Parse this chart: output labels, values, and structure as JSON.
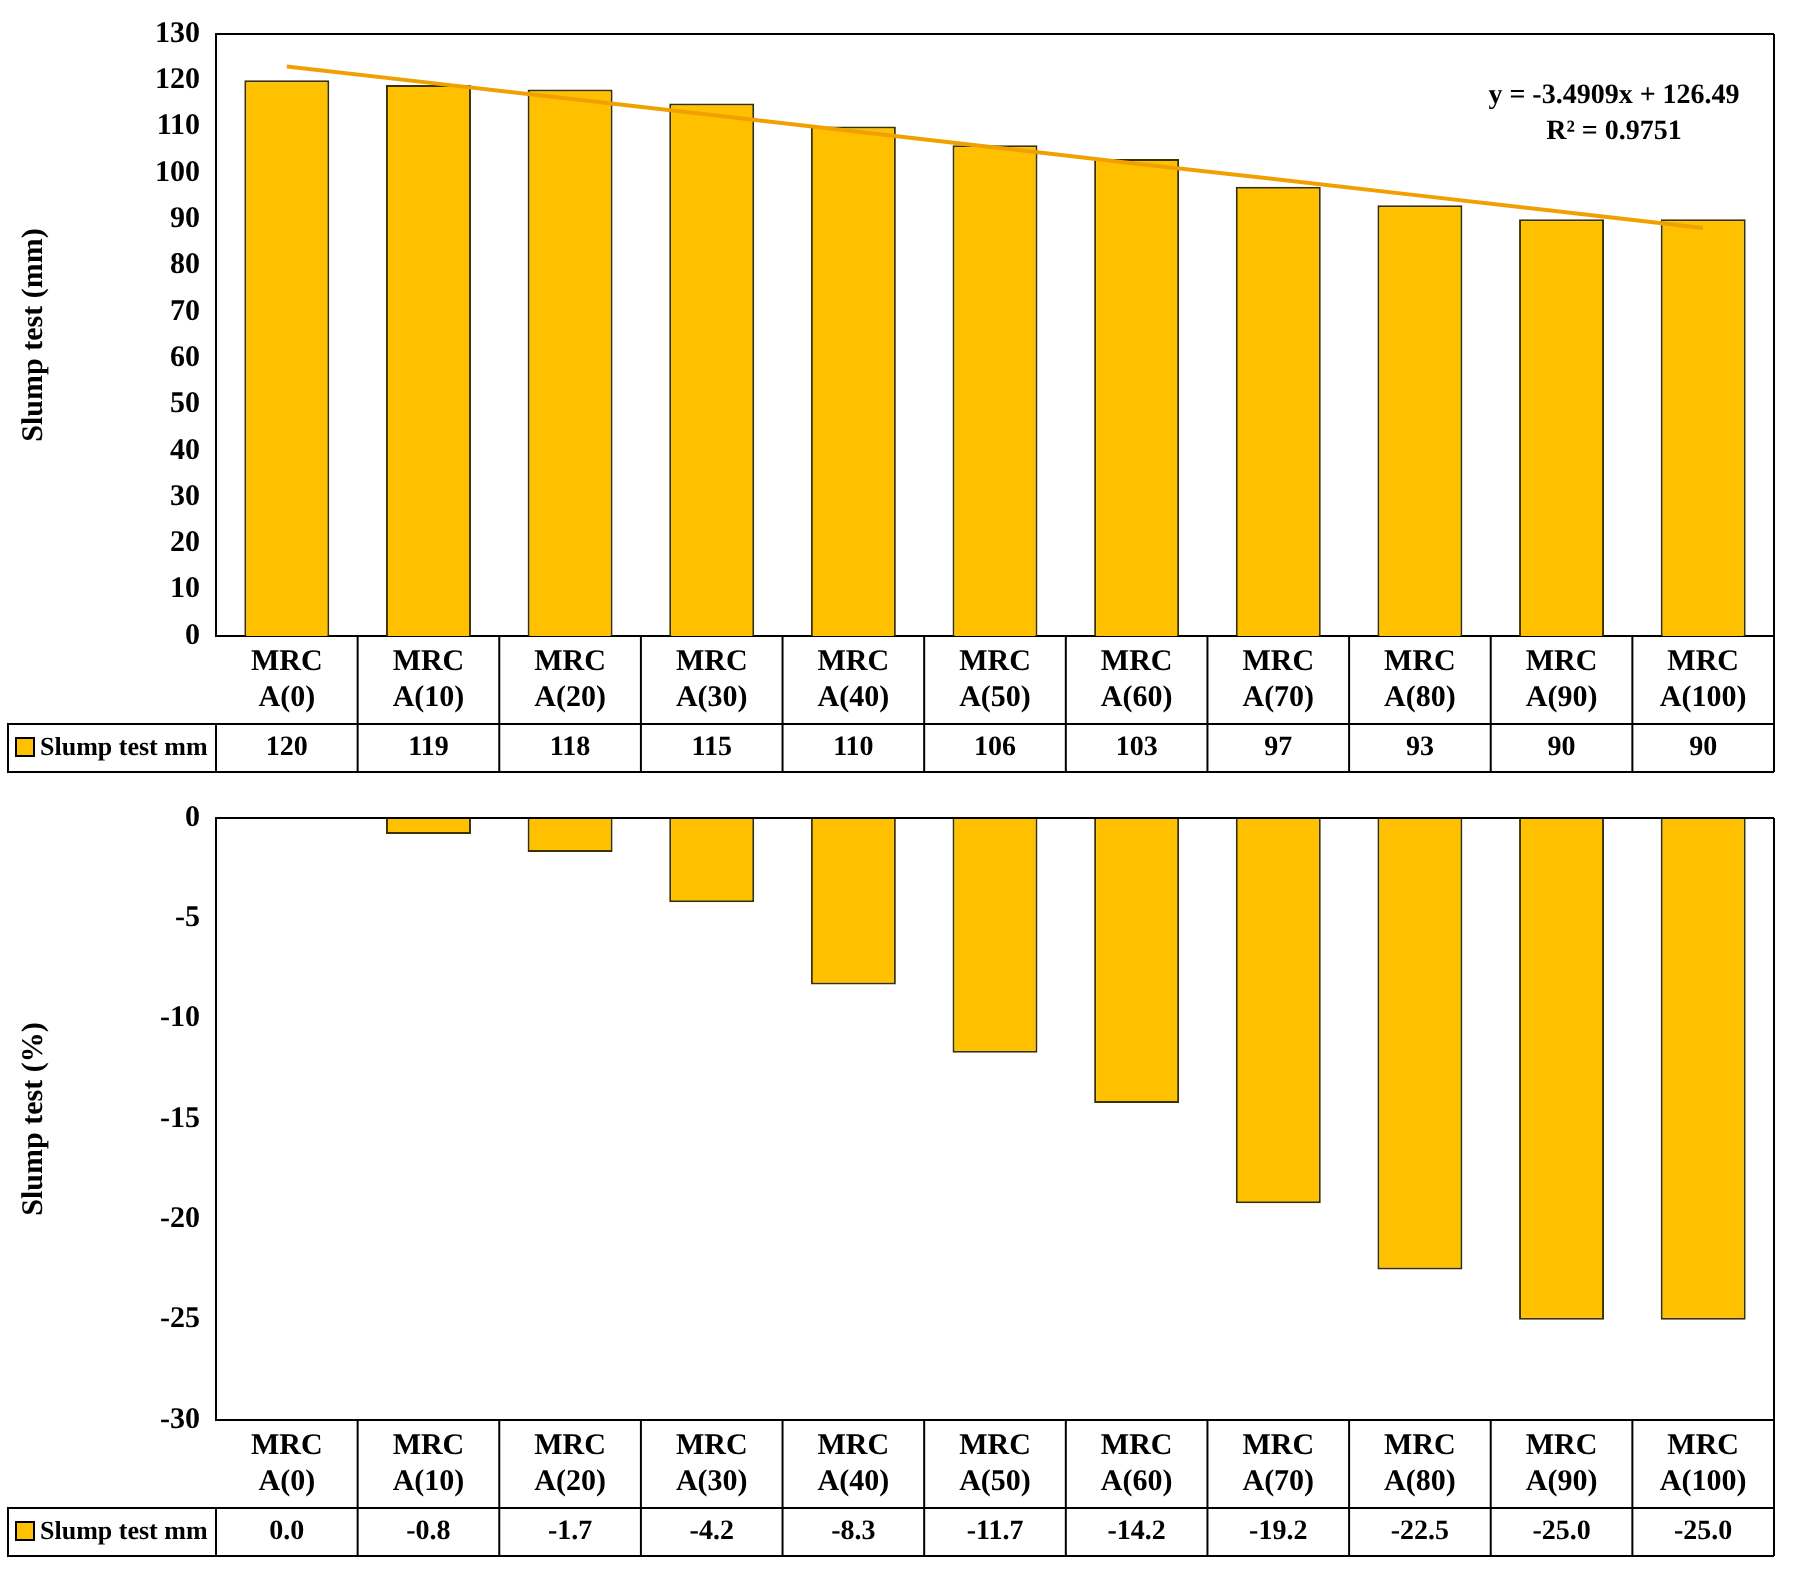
{
  "chart_data": [
    {
      "type": "bar",
      "ylabel": "Slump test (mm)",
      "categories": [
        "MRC A(0)",
        "MRC A(10)",
        "MRC A(20)",
        "MRC A(30)",
        "MRC A(40)",
        "MRC A(50)",
        "MRC A(60)",
        "MRC A(70)",
        "MRC A(80)",
        "MRC A(90)",
        "MRC A(100)"
      ],
      "series": [
        {
          "name": "Slump test mm",
          "color": "#ffc000",
          "values": [
            120,
            119,
            118,
            115,
            110,
            106,
            103,
            97,
            93,
            90,
            90
          ],
          "value_labels": [
            "120",
            "119",
            "118",
            "115",
            "110",
            "106",
            "103",
            "97",
            "93",
            "90",
            "90"
          ]
        },
        {
          "type": "line",
          "color": "#f0a000",
          "values": [
            123.0,
            119.5,
            116.0,
            112.5,
            109.0,
            105.5,
            102.0,
            98.6,
            95.1,
            91.6,
            88.1
          ]
        }
      ],
      "ylim": [
        0,
        130
      ],
      "yticks": [
        0,
        10,
        20,
        30,
        40,
        50,
        60,
        70,
        80,
        90,
        100,
        110,
        120,
        130
      ],
      "annotations": [
        "y = -3.4909x + 126.49",
        "R² = 0.9751"
      ]
    },
    {
      "type": "bar",
      "ylabel": "Slump test (%)",
      "categories": [
        "MRC A(0)",
        "MRC A(10)",
        "MRC A(20)",
        "MRC A(30)",
        "MRC A(40)",
        "MRC A(50)",
        "MRC A(60)",
        "MRC A(70)",
        "MRC A(80)",
        "MRC A(90)",
        "MRC A(100)"
      ],
      "series": [
        {
          "name": "Slump test mm",
          "color": "#ffc000",
          "values": [
            0.0,
            -0.8,
            -1.7,
            -4.2,
            -8.3,
            -11.7,
            -14.2,
            -19.2,
            -22.5,
            -25.0,
            -25.0
          ],
          "value_labels": [
            "0.0",
            "-0.8",
            "-1.7",
            "-4.2",
            "-8.3",
            "-11.7",
            "-14.2",
            "-19.2",
            "-22.5",
            "-25.0",
            "-25.0"
          ]
        }
      ],
      "ylim": [
        -30,
        0
      ],
      "yticks": [
        -30,
        -25,
        -20,
        -15,
        -10,
        -5,
        0
      ]
    }
  ]
}
